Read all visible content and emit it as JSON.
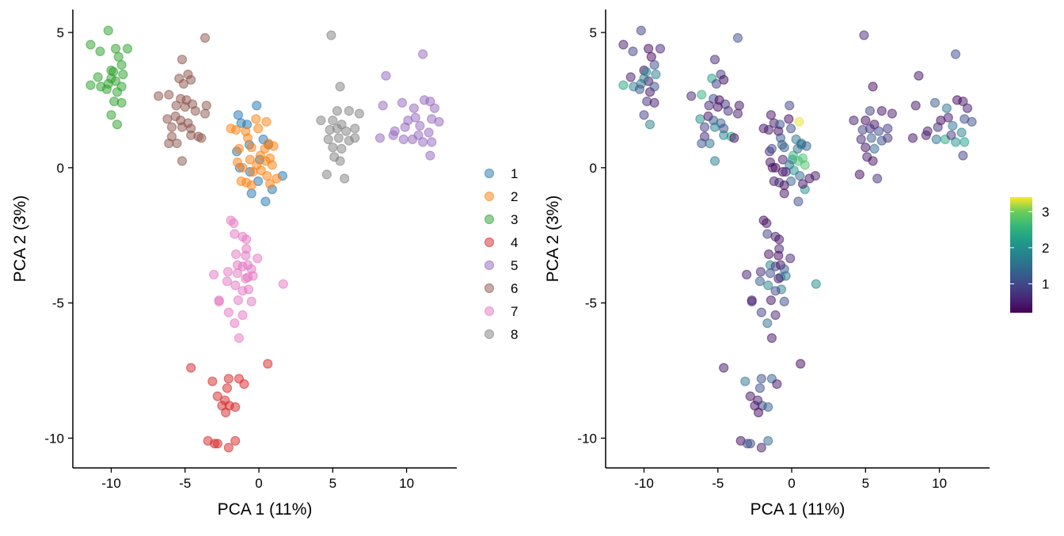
{
  "chart_data": [
    {
      "type": "scatter",
      "xlabel": "PCA 1 (11%)",
      "ylabel": "PCA 2 (3%)",
      "xlim": [
        -12.6,
        13.4
      ],
      "ylim": [
        -11.1,
        5.85
      ],
      "xticks": [
        -10,
        -5,
        0,
        5,
        10
      ],
      "yticks": [
        5,
        0,
        -5,
        -10
      ],
      "xtick_labels": [
        "-10",
        "-5",
        "0",
        "5",
        "10"
      ],
      "ytick_labels": [
        "5",
        "0",
        "-5",
        "-10"
      ],
      "grid": false,
      "legend_placement": "right",
      "color_by": "cluster",
      "series": [
        {
          "name": "1",
          "color": "#1f77b4"
        },
        {
          "name": "2",
          "color": "#ff7f0e"
        },
        {
          "name": "3",
          "color": "#2ca02c"
        },
        {
          "name": "4",
          "color": "#d62728"
        },
        {
          "name": "5",
          "color": "#9467bd"
        },
        {
          "name": "6",
          "color": "#8c564b"
        },
        {
          "name": "7",
          "color": "#e377c2"
        },
        {
          "name": "8",
          "color": "#7f7f7f"
        }
      ]
    },
    {
      "type": "scatter",
      "xlabel": "PCA 1 (11%)",
      "ylabel": "PCA 2 (3%)",
      "xlim": [
        -12.6,
        13.4
      ],
      "ylim": [
        -11.1,
        5.85
      ],
      "xticks": [
        -10,
        -5,
        0,
        5,
        10
      ],
      "yticks": [
        5,
        0,
        -5,
        -10
      ],
      "xtick_labels": [
        "-10",
        "-5",
        "0",
        "5",
        "10"
      ],
      "ytick_labels": [
        "5",
        "0",
        "-5",
        "-10"
      ],
      "grid": false,
      "legend_placement": "right",
      "color_by": "continuous value",
      "colormap": "viridis",
      "colorbar_range": [
        0.2,
        3.4
      ],
      "colorbar_ticks": [
        1,
        2,
        3
      ],
      "colorbar_tick_labels": [
        "1",
        "2",
        "3"
      ]
    }
  ],
  "points": {
    "1": [
      [
        -0.15,
        2.3,
        0.9
      ],
      [
        -1.4,
        1.95,
        0.4
      ],
      [
        -1.2,
        1.65,
        0.5
      ],
      [
        -0.8,
        1.6,
        1.2
      ],
      [
        -1.5,
        0.6,
        0.6
      ],
      [
        -0.65,
        0.85,
        1.3
      ],
      [
        0.3,
        1.05,
        1.6
      ],
      [
        0.65,
        0.85,
        2.0
      ],
      [
        1.6,
        -0.3,
        0.5
      ],
      [
        0.9,
        -0.8,
        2.1
      ],
      [
        0.45,
        -1.25,
        1.0
      ],
      [
        -0.5,
        -0.95,
        0.4
      ],
      [
        -0.05,
        -0.5,
        1.4
      ],
      [
        -0.6,
        -0.15,
        0.3
      ],
      [
        -1.3,
        0.0,
        0.4
      ],
      [
        0.05,
        0.3,
        1.8
      ]
    ],
    "2": [
      [
        -1.9,
        1.45,
        0.4
      ],
      [
        -1.55,
        1.4,
        0.5
      ],
      [
        -0.9,
        1.35,
        0.3
      ],
      [
        -0.05,
        1.45,
        1.1
      ],
      [
        -0.2,
        1.8,
        0.3
      ],
      [
        0.5,
        1.7,
        3.35
      ],
      [
        -1.35,
        0.7,
        1.0
      ],
      [
        -0.5,
        0.75,
        1.3
      ],
      [
        0.65,
        0.9,
        1.5
      ],
      [
        -1.45,
        0.2,
        0.4
      ],
      [
        -1.1,
        0.0,
        0.3
      ],
      [
        -0.6,
        0.3,
        0.5
      ],
      [
        -0.15,
        0.1,
        1.6
      ],
      [
        0.1,
        0.45,
        2.6
      ],
      [
        0.45,
        0.25,
        2.8
      ],
      [
        0.75,
        0.35,
        2.7
      ],
      [
        0.9,
        0.1,
        2.8
      ],
      [
        0.15,
        -0.1,
        2.1
      ],
      [
        -0.4,
        -0.15,
        0.6
      ],
      [
        -0.85,
        -0.55,
        0.7
      ],
      [
        -0.5,
        -0.65,
        0.3
      ],
      [
        0.55,
        -0.3,
        1.4
      ],
      [
        0.75,
        -0.6,
        0.4
      ],
      [
        1.2,
        -0.4,
        0.4
      ],
      [
        -0.75,
        1.1,
        1.2
      ],
      [
        1.0,
        0.8,
        1.3
      ],
      [
        -1.2,
        -0.5,
        0.5
      ],
      [
        0.4,
        0.7,
        1.5
      ]
    ],
    "3": [
      [
        -10.2,
        5.07,
        0.9
      ],
      [
        -11.4,
        4.55,
        0.5
      ],
      [
        -10.75,
        4.3,
        0.9
      ],
      [
        -9.7,
        4.4,
        0.3
      ],
      [
        -8.9,
        4.4,
        0.6
      ],
      [
        -9.5,
        4.1,
        0.3
      ],
      [
        -10.0,
        3.6,
        0.3
      ],
      [
        -9.3,
        3.8,
        1.0
      ],
      [
        -11.4,
        3.05,
        2.3
      ],
      [
        -10.9,
        3.35,
        0.5
      ],
      [
        -10.7,
        3.0,
        1.7
      ],
      [
        -10.2,
        3.1,
        1.5
      ],
      [
        -9.7,
        3.2,
        0.4
      ],
      [
        -9.2,
        3.45,
        1.7
      ],
      [
        -10.0,
        3.3,
        1.7
      ],
      [
        -10.3,
        2.9,
        1.2
      ],
      [
        -9.6,
        2.8,
        0.4
      ],
      [
        -9.8,
        2.45,
        0.7
      ],
      [
        -9.3,
        2.4,
        0.5
      ],
      [
        -10.0,
        1.95,
        0.9
      ],
      [
        -9.6,
        1.6,
        1.8
      ],
      [
        -9.85,
        3.55,
        1.9
      ],
      [
        -9.3,
        3.0,
        1.1
      ]
    ],
    "4": [
      [
        -4.6,
        -7.4,
        0.4
      ],
      [
        0.6,
        -7.25,
        0.3
      ],
      [
        -3.15,
        -7.9,
        1.6
      ],
      [
        -2.05,
        -7.8,
        1.1
      ],
      [
        -1.35,
        -7.8,
        1.3
      ],
      [
        -1.0,
        -8.0,
        0.4
      ],
      [
        -2.15,
        -8.15,
        1.1
      ],
      [
        -2.8,
        -8.45,
        0.4
      ],
      [
        -2.3,
        -8.6,
        0.5
      ],
      [
        -2.0,
        -8.8,
        1.0
      ],
      [
        -2.5,
        -8.8,
        0.4
      ],
      [
        -1.6,
        -8.85,
        1.3
      ],
      [
        -2.25,
        -9.05,
        0.3
      ],
      [
        -3.45,
        -10.1,
        0.3
      ],
      [
        -3.0,
        -10.2,
        1.0
      ],
      [
        -2.8,
        -10.2,
        1.1
      ],
      [
        -2.05,
        -10.35,
        0.5
      ],
      [
        -1.6,
        -10.1,
        1.4
      ]
    ],
    "5": [
      [
        11.1,
        4.2,
        1.0
      ],
      [
        8.6,
        3.4,
        0.4
      ],
      [
        8.4,
        2.3,
        0.4
      ],
      [
        9.7,
        2.4,
        1.2
      ],
      [
        10.5,
        2.2,
        1.6
      ],
      [
        11.2,
        2.5,
        0.3
      ],
      [
        11.6,
        2.45,
        0.4
      ],
      [
        11.9,
        2.2,
        0.5
      ],
      [
        10.1,
        1.75,
        0.3
      ],
      [
        10.6,
        1.85,
        0.5
      ],
      [
        11.7,
        1.8,
        1.0
      ],
      [
        12.2,
        1.7,
        1.1
      ],
      [
        9.2,
        1.35,
        0.5
      ],
      [
        9.9,
        1.5,
        0.7
      ],
      [
        10.9,
        1.55,
        1.6
      ],
      [
        11.5,
        1.3,
        1.8
      ],
      [
        8.2,
        1.1,
        0.4
      ],
      [
        9.1,
        1.2,
        0.5
      ],
      [
        9.8,
        1.05,
        1.6
      ],
      [
        10.4,
        1.05,
        2.4
      ],
      [
        11.1,
        0.95,
        2.0
      ],
      [
        11.7,
        0.95,
        2.2
      ],
      [
        11.6,
        0.45,
        0.9
      ],
      [
        10.8,
        1.2,
        0.8
      ]
    ],
    "6": [
      [
        -3.65,
        4.8,
        1.1
      ],
      [
        -5.2,
        4.0,
        0.6
      ],
      [
        -4.8,
        3.45,
        0.8
      ],
      [
        -5.4,
        3.3,
        2.2
      ],
      [
        -4.6,
        3.25,
        0.3
      ],
      [
        -5.1,
        3.1,
        0.9
      ],
      [
        -6.8,
        2.65,
        0.6
      ],
      [
        -6.1,
        2.7,
        2.5
      ],
      [
        -5.3,
        2.55,
        1.0
      ],
      [
        -4.9,
        2.5,
        0.3
      ],
      [
        -4.5,
        2.35,
        0.7
      ],
      [
        -5.6,
        2.3,
        0.6
      ],
      [
        -5.0,
        2.25,
        0.4
      ],
      [
        -3.55,
        2.3,
        0.4
      ],
      [
        -4.3,
        2.1,
        0.7
      ],
      [
        -6.2,
        1.8,
        1.9
      ],
      [
        -5.65,
        1.9,
        0.4
      ],
      [
        -5.3,
        1.75,
        1.2
      ],
      [
        -4.8,
        1.65,
        1.4
      ],
      [
        -3.65,
        2.0,
        0.5
      ],
      [
        -5.9,
        1.5,
        0.9
      ],
      [
        -5.2,
        1.5,
        1.7
      ],
      [
        -4.6,
        1.45,
        1.0
      ],
      [
        -5.9,
        1.15,
        0.6
      ],
      [
        -5.55,
        0.9,
        1.5
      ],
      [
        -4.1,
        1.15,
        2.4
      ],
      [
        -3.9,
        1.1,
        0.3
      ],
      [
        -5.2,
        0.25,
        1.7
      ],
      [
        -6.1,
        0.9,
        1.2
      ],
      [
        -4.6,
        1.2,
        1.8
      ]
    ],
    "7": [
      [
        -1.9,
        -1.95,
        0.3
      ],
      [
        -1.7,
        -2.05,
        0.4
      ],
      [
        -1.65,
        -2.45,
        0.9
      ],
      [
        -1.1,
        -2.55,
        0.5
      ],
      [
        -0.85,
        -2.65,
        0.4
      ],
      [
        -0.85,
        -3.0,
        0.6
      ],
      [
        -1.55,
        -3.2,
        0.4
      ],
      [
        -0.9,
        -3.25,
        0.3
      ],
      [
        -0.1,
        -3.35,
        0.6
      ],
      [
        -1.45,
        -3.6,
        1.8
      ],
      [
        -1.1,
        -3.65,
        0.9
      ],
      [
        -0.75,
        -3.6,
        0.4
      ],
      [
        -0.5,
        -3.75,
        1.2
      ],
      [
        -3.05,
        -3.95,
        0.5
      ],
      [
        -2.1,
        -3.85,
        0.6
      ],
      [
        -1.45,
        -3.9,
        1.1
      ],
      [
        -0.75,
        -4.05,
        1.4
      ],
      [
        -0.4,
        -4.0,
        1.6
      ],
      [
        1.65,
        -4.3,
        1.9
      ],
      [
        -2.15,
        -4.2,
        1.3
      ],
      [
        -1.6,
        -4.35,
        1.8
      ],
      [
        -0.9,
        -4.1,
        0.5
      ],
      [
        -0.7,
        -4.5,
        1.7
      ],
      [
        -1.1,
        -4.55,
        1.0
      ],
      [
        -2.7,
        -4.95,
        0.5
      ],
      [
        -1.4,
        -4.9,
        0.4
      ],
      [
        -0.5,
        -4.95,
        1.0
      ],
      [
        -2.05,
        -5.35,
        0.9
      ],
      [
        -1.65,
        -5.75,
        1.5
      ],
      [
        -1.1,
        -5.45,
        0.6
      ],
      [
        -1.35,
        -6.3,
        0.4
      ],
      [
        -2.7,
        -4.9,
        0.6
      ]
    ],
    "8": [
      [
        4.9,
        4.9,
        0.6
      ],
      [
        5.5,
        3.0,
        0.3
      ],
      [
        4.2,
        1.75,
        0.5
      ],
      [
        5.3,
        2.1,
        0.9
      ],
      [
        6.1,
        2.1,
        0.4
      ],
      [
        6.8,
        2.0,
        0.5
      ],
      [
        5.0,
        1.75,
        0.3
      ],
      [
        5.6,
        1.6,
        0.4
      ],
      [
        5.9,
        1.35,
        1.0
      ],
      [
        5.3,
        1.45,
        0.7
      ],
      [
        4.7,
        1.05,
        0.6
      ],
      [
        5.4,
        1.1,
        1.3
      ],
      [
        6.1,
        1.0,
        1.1
      ],
      [
        6.5,
        1.1,
        0.8
      ],
      [
        5.0,
        0.75,
        0.4
      ],
      [
        5.6,
        0.7,
        1.4
      ],
      [
        5.1,
        0.4,
        0.5
      ],
      [
        5.5,
        0.25,
        0.4
      ],
      [
        4.6,
        -0.25,
        0.3
      ],
      [
        5.8,
        -0.4,
        0.7
      ],
      [
        6.5,
        1.45,
        0.8
      ],
      [
        4.8,
        1.4,
        0.9
      ]
    ]
  }
}
